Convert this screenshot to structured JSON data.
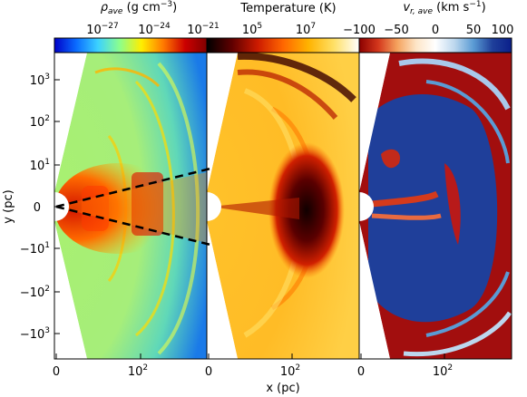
{
  "figure": {
    "panels": [
      {
        "id": "density",
        "colorbar": {
          "label_main": "ρ",
          "label_sub": "ave",
          "label_unit": " (g cm",
          "label_unit_sup": "−3",
          "label_close": ")",
          "ticks": [
            {
              "base": "10",
              "exp": "−27"
            },
            {
              "base": "10",
              "exp": "−24"
            },
            {
              "base": "10",
              "exp": "−21"
            }
          ],
          "colors": [
            "#0000c8",
            "#0a6cff",
            "#3cd2ff",
            "#8cff8c",
            "#ffee00",
            "#ff7a00",
            "#cc0000",
            "#800000"
          ]
        }
      },
      {
        "id": "temperature",
        "colorbar": {
          "label": "Temperature (K)",
          "ticks": [
            {
              "base": "10",
              "exp": "5"
            },
            {
              "base": "10",
              "exp": "7"
            }
          ],
          "colors": [
            "#000000",
            "#600000",
            "#cc1a00",
            "#ff6600",
            "#ffb300",
            "#ffe066",
            "#ffffff"
          ]
        }
      },
      {
        "id": "velocity",
        "colorbar": {
          "label_main": "v",
          "label_sub": "r, ave",
          "label_unit": " (km s",
          "label_unit_sup": "−1",
          "label_close": ")",
          "ticks": [
            "−100",
            "−50",
            "0",
            "50",
            "100"
          ],
          "colors": [
            "#8b0000",
            "#d4371c",
            "#f5a35e",
            "#fde6c8",
            "#ffffff",
            "#bcd7ee",
            "#5a9bd4",
            "#1f3f9a",
            "#0a1f8a"
          ]
        }
      }
    ],
    "y_axis": {
      "label": "y (pc)",
      "ticks": [
        {
          "base": "10",
          "exp": "3"
        },
        {
          "base": "10",
          "exp": "2"
        },
        {
          "base": "10",
          "exp": "1"
        },
        {
          "base": "0",
          "exp": ""
        },
        {
          "base": "−10",
          "exp": "1"
        },
        {
          "base": "−10",
          "exp": "2"
        },
        {
          "base": "−10",
          "exp": "3"
        }
      ]
    },
    "x_axis": {
      "label": "x (pc)",
      "ticks": [
        {
          "base": "0",
          "exp": ""
        },
        {
          "base": "10",
          "exp": "2"
        }
      ]
    }
  }
}
